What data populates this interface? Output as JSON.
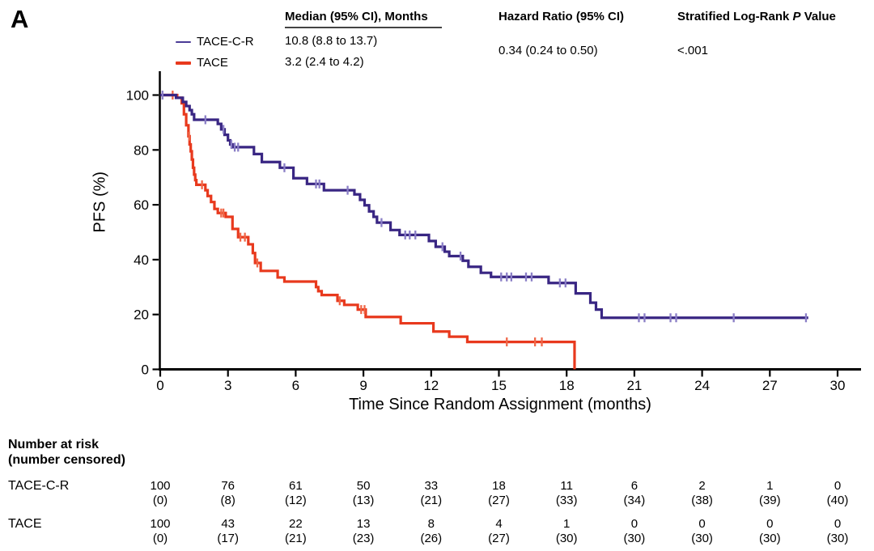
{
  "panel_label": "A",
  "legend": [
    {
      "label": "TACE-C-R",
      "color": "#4A3B96",
      "line_thickness": 2.5
    },
    {
      "label": "TACE",
      "color": "#E8391D",
      "line_thickness": 4
    }
  ],
  "stats": {
    "col1_header": "Median (95% CI), Months",
    "col2_header": "Hazard Ratio (95% CI)",
    "col3_header_prefix": "Stratified Log-Rank ",
    "col3_header_italic": "P",
    "col3_header_suffix": " Value",
    "median_tace_cr": "10.8 (8.8 to 13.7)",
    "median_tace": "3.2 (2.4 to 4.2)",
    "hazard_ratio": "0.34 (0.24 to 0.50)",
    "p_value": "<.001"
  },
  "chart_data": {
    "type": "line",
    "subtype": "kaplan-meier-step",
    "title": "",
    "xlabel": "Time Since Random Assignment (months)",
    "ylabel": "PFS (%)",
    "xlim": [
      0,
      30
    ],
    "ylim": [
      0,
      100
    ],
    "xticks": [
      0,
      3,
      6,
      9,
      12,
      15,
      18,
      21,
      24,
      27,
      30
    ],
    "yticks": [
      0,
      20,
      40,
      60,
      80,
      100
    ],
    "grid": false,
    "axis_color": "#000000",
    "series": [
      {
        "name": "TACE",
        "color": "#E8391D",
        "censor_color": "#F06748",
        "end_month": 18.35,
        "steps": [
          [
            0,
            100
          ],
          [
            0.75,
            99
          ],
          [
            0.95,
            97
          ],
          [
            1.05,
            93
          ],
          [
            1.15,
            89
          ],
          [
            1.25,
            85
          ],
          [
            1.3,
            82
          ],
          [
            1.35,
            79.5
          ],
          [
            1.4,
            76.5
          ],
          [
            1.45,
            73.5
          ],
          [
            1.5,
            71
          ],
          [
            1.55,
            69
          ],
          [
            1.6,
            67.3
          ],
          [
            2.0,
            65.3
          ],
          [
            2.1,
            63.2
          ],
          [
            2.25,
            61
          ],
          [
            2.4,
            58.5
          ],
          [
            2.55,
            57
          ],
          [
            2.9,
            55.6
          ],
          [
            3.2,
            51.2
          ],
          [
            3.45,
            48.2
          ],
          [
            3.9,
            45.6
          ],
          [
            4.1,
            42.4
          ],
          [
            4.2,
            38.8
          ],
          [
            4.45,
            35.9
          ],
          [
            5.2,
            33.5
          ],
          [
            5.5,
            32
          ],
          [
            6.9,
            30
          ],
          [
            7.0,
            28.5
          ],
          [
            7.15,
            27.1
          ],
          [
            7.85,
            25
          ],
          [
            8.15,
            23.5
          ],
          [
            8.75,
            21.8
          ],
          [
            9.1,
            19.1
          ],
          [
            10.65,
            16.8
          ],
          [
            12.1,
            13.8
          ],
          [
            12.8,
            11.9
          ],
          [
            13.6,
            10
          ],
          [
            18.35,
            0
          ]
        ],
        "censor_months": [
          0.55,
          1.28,
          1.85,
          2.7,
          2.8,
          3.55,
          3.75,
          4.3,
          7.95,
          8.9,
          9.05,
          15.35,
          16.6,
          16.9
        ]
      },
      {
        "name": "TACE-C-R",
        "color": "#392683",
        "censor_color": "#8A7EC6",
        "end_month": 28.7,
        "steps": [
          [
            0,
            100
          ],
          [
            0.7,
            99
          ],
          [
            1.0,
            97.5
          ],
          [
            1.15,
            96
          ],
          [
            1.3,
            94.5
          ],
          [
            1.4,
            93
          ],
          [
            1.5,
            91
          ],
          [
            2.55,
            89.5
          ],
          [
            2.7,
            87.5
          ],
          [
            2.85,
            85.5
          ],
          [
            3.0,
            83.5
          ],
          [
            3.1,
            82
          ],
          [
            3.2,
            81
          ],
          [
            4.15,
            78.5
          ],
          [
            4.5,
            75.6
          ],
          [
            5.3,
            73.5
          ],
          [
            5.9,
            69.7
          ],
          [
            6.5,
            67.6
          ],
          [
            7.25,
            65.3
          ],
          [
            8.6,
            63.8
          ],
          [
            8.85,
            61.8
          ],
          [
            9.05,
            59.8
          ],
          [
            9.25,
            57.6
          ],
          [
            9.45,
            55.6
          ],
          [
            9.6,
            53.5
          ],
          [
            10.2,
            50.8
          ],
          [
            10.6,
            49
          ],
          [
            11.9,
            46.8
          ],
          [
            12.2,
            44.7
          ],
          [
            12.6,
            42.9
          ],
          [
            12.8,
            41.3
          ],
          [
            13.4,
            39.6
          ],
          [
            13.65,
            37.4
          ],
          [
            14.2,
            35.2
          ],
          [
            14.65,
            33.7
          ],
          [
            17.2,
            31.5
          ],
          [
            18.4,
            27.7
          ],
          [
            19.05,
            24.3
          ],
          [
            19.3,
            21.8
          ],
          [
            19.55,
            18.8
          ]
        ],
        "censor_months": [
          0.1,
          2.0,
          2.8,
          3.15,
          3.3,
          3.45,
          5.5,
          6.9,
          7.05,
          8.3,
          9.8,
          10.85,
          11.05,
          11.3,
          12.5,
          13.3,
          15.1,
          15.35,
          15.55,
          16.2,
          16.45,
          17.7,
          17.95,
          21.2,
          21.45,
          22.6,
          22.85,
          25.4,
          28.6
        ]
      }
    ]
  },
  "risk_table": {
    "header_line1": "Number at risk",
    "header_line2": "(number censored)",
    "timepoints": [
      0,
      3,
      6,
      9,
      12,
      15,
      18,
      21,
      24,
      27,
      30
    ],
    "rows": [
      {
        "label": "TACE-C-R",
        "at_risk": [
          100,
          76,
          61,
          50,
          33,
          18,
          11,
          6,
          2,
          1,
          0
        ],
        "censored": [
          0,
          8,
          12,
          13,
          21,
          27,
          33,
          34,
          38,
          39,
          40
        ]
      },
      {
        "label": "TACE",
        "at_risk": [
          100,
          43,
          22,
          13,
          8,
          4,
          1,
          0,
          0,
          0,
          0
        ],
        "censored": [
          0,
          17,
          21,
          23,
          26,
          27,
          30,
          30,
          30,
          30,
          30
        ]
      }
    ]
  }
}
